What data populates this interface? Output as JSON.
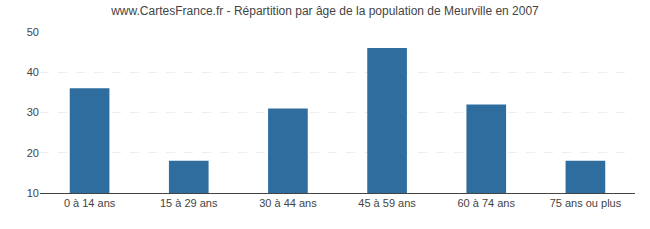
{
  "chart_data": {
    "type": "bar",
    "title": "www.CartesFrance.fr - Répartition par âge de la population de Meurville en 2007",
    "categories": [
      "0 à 14 ans",
      "15 à 29 ans",
      "30 à 44 ans",
      "45 à 59 ans",
      "60 à 74 ans",
      "75 ans ou plus"
    ],
    "values": [
      36,
      18,
      31,
      46,
      32,
      18
    ],
    "color": "#2e6d9e",
    "ylim": [
      10,
      50
    ],
    "yticks": [
      10,
      20,
      30,
      40,
      50
    ],
    "grid": true
  }
}
